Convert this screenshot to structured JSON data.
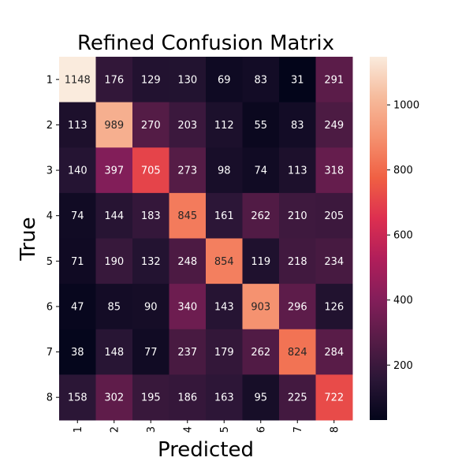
{
  "chart_data": {
    "type": "heatmap",
    "title": "Refined Confusion Matrix",
    "xlabel": "Predicted",
    "ylabel": "True",
    "x_categories": [
      "1",
      "2",
      "3",
      "4",
      "5",
      "6",
      "7",
      "8"
    ],
    "y_categories": [
      "1",
      "2",
      "3",
      "4",
      "5",
      "6",
      "7",
      "8"
    ],
    "values": [
      [
        1148,
        176,
        129,
        130,
        69,
        83,
        31,
        291
      ],
      [
        113,
        989,
        270,
        203,
        112,
        55,
        83,
        249
      ],
      [
        140,
        397,
        705,
        273,
        98,
        74,
        113,
        318
      ],
      [
        74,
        144,
        183,
        845,
        161,
        262,
        210,
        205
      ],
      [
        71,
        190,
        132,
        248,
        854,
        119,
        218,
        234
      ],
      [
        47,
        85,
        90,
        340,
        143,
        903,
        296,
        126
      ],
      [
        38,
        148,
        77,
        237,
        179,
        262,
        824,
        284
      ],
      [
        158,
        302,
        195,
        186,
        163,
        95,
        225,
        722
      ]
    ],
    "color_scale": {
      "name": "rocket",
      "min": 31,
      "max": 1148,
      "ticks": [
        200,
        400,
        600,
        800,
        1000
      ]
    },
    "colormap_stops": [
      "#03051A",
      "#2A1636",
      "#571C47",
      "#841E5A",
      "#B11E5A",
      "#DD2F50",
      "#F06043",
      "#F5916F",
      "#F6BB9C",
      "#FAEBDD"
    ]
  }
}
